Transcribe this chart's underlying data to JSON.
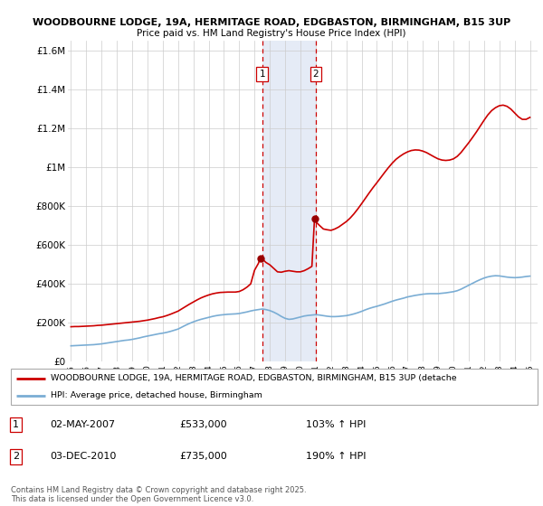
{
  "title_line1": "WOODBOURNE LODGE, 19A, HERMITAGE ROAD, EDGBASTON, BIRMINGHAM, B15 3UP",
  "title_line2": "Price paid vs. HM Land Registry's House Price Index (HPI)",
  "legend_label_red": "WOODBOURNE LODGE, 19A, HERMITAGE ROAD, EDGBASTON, BIRMINGHAM, B15 3UP (detache",
  "legend_label_blue": "HPI: Average price, detached house, Birmingham",
  "footnote": "Contains HM Land Registry data © Crown copyright and database right 2025.\nThis data is licensed under the Open Government Licence v3.0.",
  "transactions": [
    {
      "num": 1,
      "date": "02-MAY-2007",
      "price": "£533,000",
      "hpi": "103% ↑ HPI",
      "year": 2007.5
    },
    {
      "num": 2,
      "date": "03-DEC-2010",
      "price": "£735,000",
      "hpi": "190% ↑ HPI",
      "year": 2011.0
    }
  ],
  "shade_color": "#ccd9ee",
  "shade_alpha": 0.5,
  "red_color": "#cc0000",
  "blue_color": "#7aadd4",
  "marker_color": "#990000",
  "ylim": [
    0,
    1650000
  ],
  "xlim_start": 1994.8,
  "xlim_end": 2025.5,
  "yticks": [
    0,
    200000,
    400000,
    600000,
    800000,
    1000000,
    1200000,
    1400000,
    1600000
  ],
  "ytick_labels": [
    "£0",
    "£200K",
    "£400K",
    "£600K",
    "£800K",
    "£1M",
    "£1.2M",
    "£1.4M",
    "£1.6M"
  ],
  "xticks": [
    1995,
    1996,
    1997,
    1998,
    1999,
    2000,
    2001,
    2002,
    2003,
    2004,
    2005,
    2006,
    2007,
    2008,
    2009,
    2010,
    2011,
    2012,
    2013,
    2014,
    2015,
    2016,
    2017,
    2018,
    2019,
    2020,
    2021,
    2022,
    2023,
    2024,
    2025
  ],
  "hpi_data": [
    [
      1995.0,
      82000
    ],
    [
      1995.25,
      83000
    ],
    [
      1995.5,
      84000
    ],
    [
      1995.75,
      85000
    ],
    [
      1996.0,
      86000
    ],
    [
      1996.25,
      87000
    ],
    [
      1996.5,
      88000
    ],
    [
      1996.75,
      90000
    ],
    [
      1997.0,
      92000
    ],
    [
      1997.25,
      95000
    ],
    [
      1997.5,
      98000
    ],
    [
      1997.75,
      101000
    ],
    [
      1998.0,
      104000
    ],
    [
      1998.25,
      107000
    ],
    [
      1998.5,
      110000
    ],
    [
      1998.75,
      112000
    ],
    [
      1999.0,
      115000
    ],
    [
      1999.25,
      119000
    ],
    [
      1999.5,
      123000
    ],
    [
      1999.75,
      128000
    ],
    [
      2000.0,
      132000
    ],
    [
      2000.25,
      136000
    ],
    [
      2000.5,
      140000
    ],
    [
      2000.75,
      144000
    ],
    [
      2001.0,
      147000
    ],
    [
      2001.25,
      151000
    ],
    [
      2001.5,
      156000
    ],
    [
      2001.75,
      162000
    ],
    [
      2002.0,
      168000
    ],
    [
      2002.25,
      178000
    ],
    [
      2002.5,
      188000
    ],
    [
      2002.75,
      197000
    ],
    [
      2003.0,
      205000
    ],
    [
      2003.25,
      212000
    ],
    [
      2003.5,
      218000
    ],
    [
      2003.75,
      223000
    ],
    [
      2004.0,
      228000
    ],
    [
      2004.25,
      233000
    ],
    [
      2004.5,
      237000
    ],
    [
      2004.75,
      240000
    ],
    [
      2005.0,
      242000
    ],
    [
      2005.25,
      244000
    ],
    [
      2005.5,
      245000
    ],
    [
      2005.75,
      246000
    ],
    [
      2006.0,
      248000
    ],
    [
      2006.25,
      252000
    ],
    [
      2006.5,
      256000
    ],
    [
      2006.75,
      261000
    ],
    [
      2007.0,
      265000
    ],
    [
      2007.25,
      268000
    ],
    [
      2007.5,
      271000
    ],
    [
      2007.75,
      268000
    ],
    [
      2008.0,
      263000
    ],
    [
      2008.25,
      255000
    ],
    [
      2008.5,
      245000
    ],
    [
      2008.75,
      233000
    ],
    [
      2009.0,
      223000
    ],
    [
      2009.25,
      218000
    ],
    [
      2009.5,
      220000
    ],
    [
      2009.75,
      225000
    ],
    [
      2010.0,
      230000
    ],
    [
      2010.25,
      235000
    ],
    [
      2010.5,
      238000
    ],
    [
      2010.75,
      240000
    ],
    [
      2011.0,
      242000
    ],
    [
      2011.25,
      240000
    ],
    [
      2011.5,
      237000
    ],
    [
      2011.75,
      234000
    ],
    [
      2012.0,
      232000
    ],
    [
      2012.25,
      232000
    ],
    [
      2012.5,
      233000
    ],
    [
      2012.75,
      235000
    ],
    [
      2013.0,
      237000
    ],
    [
      2013.25,
      241000
    ],
    [
      2013.5,
      246000
    ],
    [
      2013.75,
      252000
    ],
    [
      2014.0,
      259000
    ],
    [
      2014.25,
      267000
    ],
    [
      2014.5,
      274000
    ],
    [
      2014.75,
      280000
    ],
    [
      2015.0,
      285000
    ],
    [
      2015.25,
      291000
    ],
    [
      2015.5,
      297000
    ],
    [
      2015.75,
      304000
    ],
    [
      2016.0,
      311000
    ],
    [
      2016.25,
      317000
    ],
    [
      2016.5,
      322000
    ],
    [
      2016.75,
      327000
    ],
    [
      2017.0,
      333000
    ],
    [
      2017.25,
      337000
    ],
    [
      2017.5,
      341000
    ],
    [
      2017.75,
      344000
    ],
    [
      2018.0,
      347000
    ],
    [
      2018.25,
      349000
    ],
    [
      2018.5,
      350000
    ],
    [
      2018.75,
      350000
    ],
    [
      2019.0,
      350000
    ],
    [
      2019.25,
      352000
    ],
    [
      2019.5,
      354000
    ],
    [
      2019.75,
      357000
    ],
    [
      2020.0,
      360000
    ],
    [
      2020.25,
      365000
    ],
    [
      2020.5,
      373000
    ],
    [
      2020.75,
      383000
    ],
    [
      2021.0,
      393000
    ],
    [
      2021.25,
      403000
    ],
    [
      2021.5,
      413000
    ],
    [
      2021.75,
      422000
    ],
    [
      2022.0,
      430000
    ],
    [
      2022.25,
      436000
    ],
    [
      2022.5,
      440000
    ],
    [
      2022.75,
      442000
    ],
    [
      2023.0,
      441000
    ],
    [
      2023.25,
      438000
    ],
    [
      2023.5,
      435000
    ],
    [
      2023.75,
      433000
    ],
    [
      2024.0,
      432000
    ],
    [
      2024.25,
      433000
    ],
    [
      2024.5,
      435000
    ],
    [
      2024.75,
      438000
    ],
    [
      2025.0,
      440000
    ]
  ],
  "price_data": [
    [
      1995.0,
      180000
    ],
    [
      1995.25,
      181000
    ],
    [
      1995.5,
      181000
    ],
    [
      1995.75,
      182000
    ],
    [
      1996.0,
      183000
    ],
    [
      1996.25,
      184000
    ],
    [
      1996.5,
      185000
    ],
    [
      1996.75,
      187000
    ],
    [
      1997.0,
      188000
    ],
    [
      1997.25,
      190000
    ],
    [
      1997.5,
      192000
    ],
    [
      1997.75,
      194000
    ],
    [
      1998.0,
      196000
    ],
    [
      1998.25,
      198000
    ],
    [
      1998.5,
      200000
    ],
    [
      1998.75,
      202000
    ],
    [
      1999.0,
      204000
    ],
    [
      1999.25,
      206000
    ],
    [
      1999.5,
      208000
    ],
    [
      1999.75,
      211000
    ],
    [
      2000.0,
      214000
    ],
    [
      2000.25,
      218000
    ],
    [
      2000.5,
      222000
    ],
    [
      2000.75,
      227000
    ],
    [
      2001.0,
      231000
    ],
    [
      2001.25,
      237000
    ],
    [
      2001.5,
      244000
    ],
    [
      2001.75,
      252000
    ],
    [
      2002.0,
      260000
    ],
    [
      2002.25,
      272000
    ],
    [
      2002.5,
      284000
    ],
    [
      2002.75,
      296000
    ],
    [
      2003.0,
      307000
    ],
    [
      2003.25,
      318000
    ],
    [
      2003.5,
      328000
    ],
    [
      2003.75,
      336000
    ],
    [
      2004.0,
      343000
    ],
    [
      2004.25,
      349000
    ],
    [
      2004.5,
      353000
    ],
    [
      2004.75,
      356000
    ],
    [
      2005.0,
      357000
    ],
    [
      2005.25,
      358000
    ],
    [
      2005.5,
      358000
    ],
    [
      2005.75,
      358000
    ],
    [
      2006.0,
      361000
    ],
    [
      2006.25,
      370000
    ],
    [
      2006.5,
      383000
    ],
    [
      2006.75,
      400000
    ],
    [
      2007.0,
      470000
    ],
    [
      2007.25,
      505000
    ],
    [
      2007.38,
      533000
    ],
    [
      2007.5,
      528000
    ],
    [
      2007.75,
      510000
    ],
    [
      2008.0,
      498000
    ],
    [
      2008.25,
      480000
    ],
    [
      2008.5,
      462000
    ],
    [
      2008.75,
      460000
    ],
    [
      2009.0,
      465000
    ],
    [
      2009.25,
      468000
    ],
    [
      2009.5,
      465000
    ],
    [
      2009.75,
      462000
    ],
    [
      2010.0,
      462000
    ],
    [
      2010.25,
      468000
    ],
    [
      2010.5,
      478000
    ],
    [
      2010.75,
      490000
    ],
    [
      2010.92,
      735000
    ],
    [
      2011.0,
      720000
    ],
    [
      2011.25,
      700000
    ],
    [
      2011.5,
      682000
    ],
    [
      2011.75,
      678000
    ],
    [
      2012.0,
      675000
    ],
    [
      2012.25,
      682000
    ],
    [
      2012.5,
      692000
    ],
    [
      2012.75,
      706000
    ],
    [
      2013.0,
      720000
    ],
    [
      2013.25,
      738000
    ],
    [
      2013.5,
      760000
    ],
    [
      2013.75,
      785000
    ],
    [
      2014.0,
      812000
    ],
    [
      2014.25,
      840000
    ],
    [
      2014.5,
      868000
    ],
    [
      2014.75,
      895000
    ],
    [
      2015.0,
      920000
    ],
    [
      2015.25,
      946000
    ],
    [
      2015.5,
      972000
    ],
    [
      2015.75,
      997000
    ],
    [
      2016.0,
      1020000
    ],
    [
      2016.25,
      1040000
    ],
    [
      2016.5,
      1055000
    ],
    [
      2016.75,
      1068000
    ],
    [
      2017.0,
      1078000
    ],
    [
      2017.25,
      1085000
    ],
    [
      2017.5,
      1088000
    ],
    [
      2017.75,
      1087000
    ],
    [
      2018.0,
      1082000
    ],
    [
      2018.25,
      1074000
    ],
    [
      2018.5,
      1063000
    ],
    [
      2018.75,
      1052000
    ],
    [
      2019.0,
      1042000
    ],
    [
      2019.25,
      1036000
    ],
    [
      2019.5,
      1034000
    ],
    [
      2019.75,
      1036000
    ],
    [
      2020.0,
      1042000
    ],
    [
      2020.25,
      1055000
    ],
    [
      2020.5,
      1075000
    ],
    [
      2020.75,
      1100000
    ],
    [
      2021.0,
      1125000
    ],
    [
      2021.25,
      1152000
    ],
    [
      2021.5,
      1180000
    ],
    [
      2021.75,
      1210000
    ],
    [
      2022.0,
      1240000
    ],
    [
      2022.25,
      1268000
    ],
    [
      2022.5,
      1290000
    ],
    [
      2022.75,
      1305000
    ],
    [
      2023.0,
      1315000
    ],
    [
      2023.25,
      1318000
    ],
    [
      2023.5,
      1312000
    ],
    [
      2023.75,
      1298000
    ],
    [
      2024.0,
      1278000
    ],
    [
      2024.25,
      1258000
    ],
    [
      2024.5,
      1245000
    ],
    [
      2024.75,
      1245000
    ],
    [
      2025.0,
      1255000
    ]
  ],
  "t1_dot_year": 2007.38,
  "t1_dot_price": 533000,
  "t2_dot_year": 2010.92,
  "t2_dot_price": 735000
}
